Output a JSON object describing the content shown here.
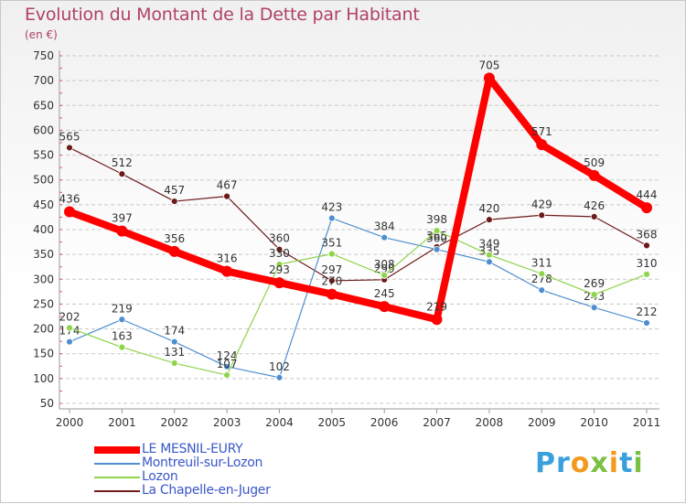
{
  "header": {
    "title": "Evolution du Montant de la Dette par Habitant",
    "subtitle": "(en €)"
  },
  "logo": {
    "text": "Proxiti",
    "colors": [
      "#3aa0dc",
      "#f39a1e",
      "#7bc043"
    ]
  },
  "chart_data": {
    "type": "line",
    "title": "Evolution du Montant de la Dette par Habitant",
    "subtitle": "(en €)",
    "xlabel": "",
    "ylabel": "",
    "x": [
      "2000",
      "2001",
      "2002",
      "2003",
      "2004",
      "2005",
      "2006",
      "2007",
      "2008",
      "2009",
      "2010",
      "2011"
    ],
    "ylim": [
      50,
      750
    ],
    "yticks": [
      50,
      100,
      150,
      200,
      250,
      300,
      350,
      400,
      450,
      500,
      550,
      600,
      650,
      700,
      750
    ],
    "grid": "horizontal",
    "legend_position": "bottom-left",
    "series": [
      {
        "name": "LE MESNIL-EURY",
        "color": "#ff0000",
        "values": [
          436,
          397,
          356,
          316,
          293,
          270,
          245,
          219,
          705,
          571,
          509,
          444
        ],
        "labels": [
          "436",
          "397",
          "356",
          "316",
          "293",
          "270",
          "245",
          "219",
          "705",
          "571",
          "509",
          "444"
        ]
      },
      {
        "name": "Montreuil-sur-Lozon",
        "color": "#4f8fcf",
        "values": [
          174,
          219,
          174,
          124,
          102,
          423,
          384,
          360,
          335,
          278,
          243,
          212
        ],
        "labels": [
          "174",
          "219",
          "174",
          "124",
          "102",
          "423",
          "384",
          "360",
          "335",
          "278",
          "243",
          "212"
        ]
      },
      {
        "name": "Lozon",
        "color": "#8fd44a",
        "values": [
          202,
          163,
          131,
          107,
          330,
          351,
          308,
          398,
          349,
          311,
          269,
          310
        ],
        "labels": [
          "202",
          "163",
          "131",
          "107",
          "330",
          "351",
          "308",
          "398",
          "349",
          "311",
          "269",
          "310"
        ]
      },
      {
        "name": "La Chapelle-en-Juger",
        "color": "#6e1a1a",
        "values": [
          565,
          512,
          457,
          467,
          360,
          297,
          299,
          365,
          420,
          429,
          426,
          368
        ],
        "labels": [
          "565",
          "512",
          "457",
          "467",
          "360",
          "297",
          "299",
          "365",
          "420",
          "429",
          "426",
          "368"
        ]
      }
    ]
  }
}
